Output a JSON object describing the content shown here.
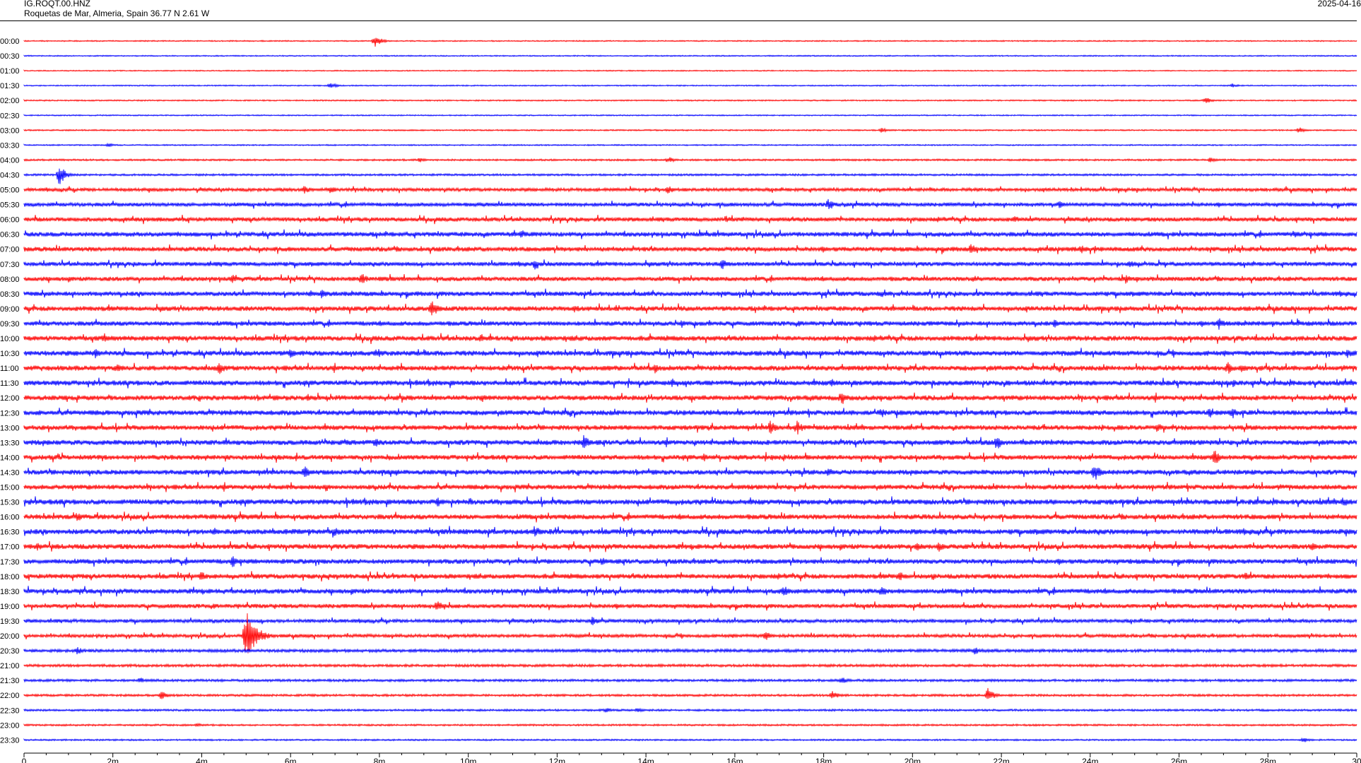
{
  "header": {
    "station_code": "IG.ROQT.00.HNZ",
    "station_location": "Roquetas de Mar, Almeria, Spain  36.77 N 2.61 W",
    "date": "2025-04-16"
  },
  "chart_data": {
    "type": "line",
    "title": "IG.ROQT.00.HNZ",
    "subtitle": "Roquetas de Mar, Almeria, Spain  36.77 N 2.61 W",
    "date": "2025-04-16",
    "xlabel": "",
    "ylabel": "",
    "x_tick_labels": [
      "0",
      "2m",
      "4m",
      "6m",
      "8m",
      "10m",
      "12m",
      "14m",
      "16m",
      "18m",
      "20m",
      "22m",
      "24m",
      "26m",
      "28m",
      "30"
    ],
    "xlim": [
      0,
      30
    ],
    "row_labels": [
      "00:00",
      "00:30",
      "01:00",
      "01:30",
      "02:00",
      "02:30",
      "03:00",
      "03:30",
      "04:00",
      "04:30",
      "05:00",
      "05:30",
      "06:00",
      "06:30",
      "07:00",
      "07:30",
      "08:00",
      "08:30",
      "09:00",
      "09:30",
      "10:00",
      "10:30",
      "11:00",
      "11:30",
      "12:00",
      "12:30",
      "13:00",
      "13:30",
      "14:00",
      "14:30",
      "15:00",
      "15:30",
      "16:00",
      "16:30",
      "17:00",
      "17:30",
      "18:00",
      "18:30",
      "19:00",
      "19:30",
      "20:00",
      "20:30",
      "21:00",
      "21:30",
      "22:00",
      "22:30",
      "23:00",
      "23:30"
    ],
    "row_colors": [
      "#ff0000",
      "#0000ff"
    ],
    "grid": false,
    "row_noise": [
      0.6,
      0.6,
      0.55,
      0.6,
      0.65,
      0.6,
      0.7,
      0.65,
      0.9,
      1.0,
      1.6,
      1.8,
      2.0,
      2.2,
      2.2,
      2.0,
      2.1,
      2.2,
      2.3,
      2.2,
      2.4,
      2.4,
      2.4,
      2.4,
      2.4,
      2.4,
      2.3,
      2.4,
      2.3,
      2.3,
      2.3,
      2.5,
      2.4,
      2.5,
      2.4,
      2.3,
      2.3,
      2.3,
      2.0,
      1.7,
      1.6,
      1.5,
      1.3,
      1.2,
      1.1,
      1.0,
      0.9,
      0.8
    ],
    "events": [
      {
        "row": 0,
        "minute": 7.9,
        "amplitude": 9
      },
      {
        "row": 3,
        "minute": 6.9,
        "amplitude": 5
      },
      {
        "row": 3,
        "minute": 27.2,
        "amplitude": 3
      },
      {
        "row": 4,
        "minute": 26.6,
        "amplitude": 5
      },
      {
        "row": 6,
        "minute": 19.3,
        "amplitude": 4
      },
      {
        "row": 6,
        "minute": 28.7,
        "amplitude": 5
      },
      {
        "row": 7,
        "minute": 1.9,
        "amplitude": 3
      },
      {
        "row": 8,
        "minute": 8.9,
        "amplitude": 4
      },
      {
        "row": 8,
        "minute": 14.5,
        "amplitude": 5
      },
      {
        "row": 8,
        "minute": 26.7,
        "amplitude": 4
      },
      {
        "row": 9,
        "minute": 0.8,
        "amplitude": 16
      },
      {
        "row": 10,
        "minute": 6.3,
        "amplitude": 7
      },
      {
        "row": 10,
        "minute": 6.9,
        "amplitude": 6
      },
      {
        "row": 10,
        "minute": 14.5,
        "amplitude": 7
      },
      {
        "row": 11,
        "minute": 18.1,
        "amplitude": 8
      },
      {
        "row": 11,
        "minute": 23.3,
        "amplitude": 6
      },
      {
        "row": 12,
        "minute": 15.8,
        "amplitude": 6
      },
      {
        "row": 12,
        "minute": 22.3,
        "amplitude": 6
      },
      {
        "row": 13,
        "minute": 11.2,
        "amplitude": 7
      },
      {
        "row": 13,
        "minute": 28.6,
        "amplitude": 7
      },
      {
        "row": 14,
        "minute": 21.3,
        "amplitude": 9
      },
      {
        "row": 14,
        "minute": 23.8,
        "amplitude": 7
      },
      {
        "row": 15,
        "minute": 11.5,
        "amplitude": 8
      },
      {
        "row": 15,
        "minute": 15.7,
        "amplitude": 9
      },
      {
        "row": 15,
        "minute": 24.9,
        "amplitude": 7
      },
      {
        "row": 16,
        "minute": 4.7,
        "amplitude": 7
      },
      {
        "row": 16,
        "minute": 7.6,
        "amplitude": 9
      },
      {
        "row": 16,
        "minute": 21.4,
        "amplitude": 7
      },
      {
        "row": 16,
        "minute": 24.8,
        "amplitude": 7
      },
      {
        "row": 17,
        "minute": 6.7,
        "amplitude": 7
      },
      {
        "row": 17,
        "minute": 19.3,
        "amplitude": 6
      },
      {
        "row": 18,
        "minute": 9.2,
        "amplitude": 14
      },
      {
        "row": 18,
        "minute": 12.4,
        "amplitude": 7
      },
      {
        "row": 19,
        "minute": 14.8,
        "amplitude": 8
      },
      {
        "row": 19,
        "minute": 23.2,
        "amplitude": 7
      },
      {
        "row": 19,
        "minute": 26.9,
        "amplitude": 9
      },
      {
        "row": 20,
        "minute": 1.8,
        "amplitude": 8
      },
      {
        "row": 20,
        "minute": 10.3,
        "amplitude": 8
      },
      {
        "row": 21,
        "minute": 1.6,
        "amplitude": 8
      },
      {
        "row": 21,
        "minute": 6.0,
        "amplitude": 8
      },
      {
        "row": 21,
        "minute": 8.0,
        "amplitude": 7
      },
      {
        "row": 21,
        "minute": 29.8,
        "amplitude": 7
      },
      {
        "row": 22,
        "minute": 2.1,
        "amplitude": 8
      },
      {
        "row": 22,
        "minute": 4.4,
        "amplitude": 10
      },
      {
        "row": 22,
        "minute": 14.2,
        "amplitude": 8
      },
      {
        "row": 22,
        "minute": 27.1,
        "amplitude": 9
      },
      {
        "row": 22,
        "minute": 27.4,
        "amplitude": 7
      },
      {
        "row": 23,
        "minute": 14.6,
        "amplitude": 7
      },
      {
        "row": 23,
        "minute": 18.2,
        "amplitude": 7
      },
      {
        "row": 23,
        "minute": 27.2,
        "amplitude": 7
      },
      {
        "row": 24,
        "minute": 6.4,
        "amplitude": 6
      },
      {
        "row": 24,
        "minute": 10.3,
        "amplitude": 7
      },
      {
        "row": 24,
        "minute": 18.4,
        "amplitude": 11
      },
      {
        "row": 25,
        "minute": 19.3,
        "amplitude": 9
      },
      {
        "row": 25,
        "minute": 26.7,
        "amplitude": 9
      },
      {
        "row": 25,
        "minute": 27.2,
        "amplitude": 9
      },
      {
        "row": 26,
        "minute": 16.8,
        "amplitude": 11
      },
      {
        "row": 26,
        "minute": 17.4,
        "amplitude": 11
      },
      {
        "row": 26,
        "minute": 25.5,
        "amplitude": 8
      },
      {
        "row": 27,
        "minute": 7.9,
        "amplitude": 8
      },
      {
        "row": 27,
        "minute": 12.6,
        "amplitude": 11
      },
      {
        "row": 27,
        "minute": 21.9,
        "amplitude": 11
      },
      {
        "row": 28,
        "minute": 15.3,
        "amplitude": 7
      },
      {
        "row": 28,
        "minute": 26.8,
        "amplitude": 12
      },
      {
        "row": 29,
        "minute": 6.3,
        "amplitude": 11
      },
      {
        "row": 29,
        "minute": 18.1,
        "amplitude": 7
      },
      {
        "row": 29,
        "minute": 24.1,
        "amplitude": 14
      },
      {
        "row": 30,
        "minute": 6.8,
        "amplitude": 6
      },
      {
        "row": 31,
        "minute": 9.3,
        "amplitude": 9
      },
      {
        "row": 31,
        "minute": 29.7,
        "amplitude": 8
      },
      {
        "row": 32,
        "minute": 1.2,
        "amplitude": 7
      },
      {
        "row": 33,
        "minute": 7.0,
        "amplitude": 8
      },
      {
        "row": 33,
        "minute": 11.5,
        "amplitude": 10
      },
      {
        "row": 34,
        "minute": 0.3,
        "amplitude": 7
      },
      {
        "row": 34,
        "minute": 20.1,
        "amplitude": 8
      },
      {
        "row": 34,
        "minute": 20.6,
        "amplitude": 8
      },
      {
        "row": 34,
        "minute": 29.0,
        "amplitude": 7
      },
      {
        "row": 35,
        "minute": 4.7,
        "amplitude": 9
      },
      {
        "row": 35,
        "minute": 13.0,
        "amplitude": 7
      },
      {
        "row": 36,
        "minute": 4.0,
        "amplitude": 8
      },
      {
        "row": 36,
        "minute": 19.7,
        "amplitude": 9
      },
      {
        "row": 36,
        "minute": 27.5,
        "amplitude": 7
      },
      {
        "row": 37,
        "minute": 17.1,
        "amplitude": 9
      },
      {
        "row": 37,
        "minute": 19.3,
        "amplitude": 10
      },
      {
        "row": 38,
        "minute": 9.3,
        "amplitude": 9
      },
      {
        "row": 39,
        "minute": 12.8,
        "amplitude": 7
      },
      {
        "row": 40,
        "minute": 5.0,
        "amplitude": 36
      },
      {
        "row": 40,
        "minute": 16.7,
        "amplitude": 8
      },
      {
        "row": 41,
        "minute": 1.2,
        "amplitude": 6
      },
      {
        "row": 41,
        "minute": 21.4,
        "amplitude": 6
      },
      {
        "row": 43,
        "minute": 2.6,
        "amplitude": 5
      },
      {
        "row": 43,
        "minute": 18.4,
        "amplitude": 6
      },
      {
        "row": 44,
        "minute": 3.1,
        "amplitude": 7
      },
      {
        "row": 44,
        "minute": 18.2,
        "amplitude": 7
      },
      {
        "row": 44,
        "minute": 21.7,
        "amplitude": 11
      },
      {
        "row": 45,
        "minute": 13.1,
        "amplitude": 4
      },
      {
        "row": 45,
        "minute": 13.8,
        "amplitude": 4
      },
      {
        "row": 46,
        "minute": 3.9,
        "amplitude": 3
      },
      {
        "row": 47,
        "minute": 28.8,
        "amplitude": 4
      }
    ]
  }
}
